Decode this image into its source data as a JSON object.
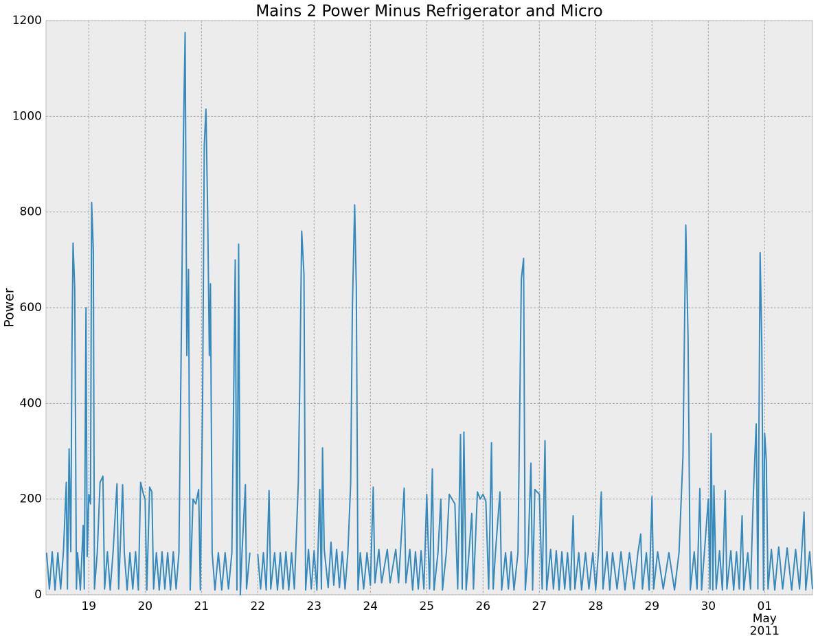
{
  "chart_data": {
    "type": "line",
    "title": "Mains 2 Power Minus Refrigerator and Micro",
    "ylabel": "Power",
    "x": [
      18.25,
      18.3,
      18.35,
      18.4,
      18.45,
      18.5,
      18.55,
      18.6,
      18.62,
      18.65,
      18.68,
      18.7,
      18.72,
      18.75,
      18.78,
      18.8,
      18.85,
      18.9,
      18.92,
      18.95,
      18.97,
      19.0,
      19.03,
      19.05,
      19.08,
      19.1,
      19.15,
      19.2,
      19.25,
      19.28,
      19.33,
      19.38,
      19.43,
      19.5,
      19.53,
      19.6,
      19.63,
      19.68,
      19.73,
      19.78,
      19.83,
      19.88,
      19.92,
      19.97,
      20.0,
      20.03,
      20.08,
      20.12,
      20.15,
      20.2,
      20.25,
      20.3,
      20.35,
      20.4,
      20.45,
      20.5,
      20.55,
      20.6,
      20.65,
      20.68,
      20.71,
      20.74,
      20.77,
      20.8,
      20.85,
      20.9,
      20.95,
      20.98,
      21.02,
      21.05,
      21.08,
      21.11,
      21.14,
      21.16,
      21.19,
      21.24,
      21.3,
      21.36,
      21.42,
      21.48,
      21.54,
      21.6,
      21.63,
      21.66,
      21.69,
      21.72,
      21.78,
      21.8,
      21.86,
      21.93,
      22.0,
      22.05,
      22.1,
      22.15,
      22.2,
      22.23,
      22.3,
      22.35,
      22.4,
      22.45,
      22.5,
      22.55,
      22.6,
      22.65,
      22.72,
      22.75,
      22.78,
      22.82,
      22.85,
      22.9,
      22.95,
      23.0,
      23.05,
      23.1,
      23.13,
      23.15,
      23.18,
      23.25,
      23.3,
      23.35,
      23.4,
      23.45,
      23.5,
      23.55,
      23.6,
      23.65,
      23.68,
      23.72,
      23.75,
      23.78,
      23.82,
      23.88,
      23.94,
      24.0,
      24.05,
      24.08,
      24.15,
      24.2,
      24.3,
      24.35,
      24.45,
      24.5,
      24.6,
      24.63,
      24.7,
      24.75,
      24.8,
      24.85,
      24.9,
      24.95,
      25.0,
      25.05,
      25.1,
      25.13,
      25.2,
      25.25,
      25.28,
      25.35,
      25.4,
      25.45,
      25.5,
      25.55,
      25.6,
      25.63,
      25.66,
      25.7,
      25.75,
      25.8,
      25.83,
      25.9,
      25.95,
      26.0,
      26.05,
      26.1,
      26.15,
      26.18,
      26.22,
      26.3,
      26.33,
      26.4,
      26.45,
      26.5,
      26.55,
      26.62,
      26.68,
      26.72,
      26.75,
      26.8,
      26.85,
      26.88,
      26.92,
      27.0,
      27.05,
      27.1,
      27.13,
      27.2,
      27.25,
      27.3,
      27.35,
      27.4,
      27.45,
      27.5,
      27.55,
      27.6,
      27.63,
      27.7,
      27.75,
      27.82,
      27.88,
      27.95,
      28.0,
      28.05,
      28.1,
      28.13,
      28.2,
      28.25,
      28.3,
      28.38,
      28.45,
      28.52,
      28.6,
      28.68,
      28.75,
      28.8,
      28.83,
      28.9,
      28.95,
      29.0,
      29.03,
      29.1,
      29.2,
      29.3,
      29.4,
      29.48,
      29.55,
      29.6,
      29.64,
      29.68,
      29.75,
      29.8,
      29.85,
      29.88,
      29.93,
      30.0,
      30.03,
      30.05,
      30.08,
      30.1,
      30.14,
      30.2,
      30.25,
      30.3,
      30.33,
      30.4,
      30.45,
      30.5,
      30.55,
      30.6,
      30.63,
      30.7,
      30.75,
      30.8,
      30.85,
      30.88,
      30.92,
      30.95,
      30.98,
      31.0,
      31.03,
      31.06,
      31.12,
      31.18,
      31.25,
      31.32,
      31.4,
      31.48,
      31.55,
      31.62,
      31.7,
      31.73,
      31.8,
      31.85
    ],
    "series": [
      {
        "color": "#348abd",
        "values": [
          88,
          12,
          90,
          10,
          88,
          12,
          92,
          235,
          12,
          305,
          90,
          510,
          735,
          640,
          12,
          88,
          10,
          145,
          12,
          600,
          80,
          210,
          190,
          820,
          720,
          12,
          88,
          235,
          248,
          12,
          90,
          10,
          88,
          232,
          12,
          230,
          88,
          10,
          88,
          12,
          90,
          10,
          235,
          210,
          200,
          10,
          225,
          215,
          12,
          88,
          10,
          90,
          12,
          88,
          10,
          90,
          12,
          88,
          620,
          960,
          1175,
          500,
          680,
          10,
          200,
          190,
          220,
          10,
          400,
          940,
          1015,
          800,
          500,
          650,
          88,
          10,
          88,
          10,
          88,
          12,
          88,
          700,
          10,
          733,
          0,
          88,
          230,
          12,
          88,
          null,
          85,
          12,
          88,
          10,
          218,
          12,
          88,
          10,
          88,
          12,
          90,
          10,
          88,
          12,
          235,
          472,
          760,
          670,
          10,
          95,
          12,
          92,
          10,
          220,
          12,
          307,
          95,
          15,
          110,
          20,
          95,
          15,
          90,
          12,
          88,
          235,
          600,
          815,
          640,
          10,
          88,
          12,
          88,
          20,
          225,
          25,
          95,
          25,
          95,
          25,
          95,
          25,
          223,
          25,
          95,
          10,
          90,
          12,
          92,
          12,
          210,
          12,
          263,
          10,
          88,
          200,
          10,
          90,
          210,
          200,
          190,
          12,
          335,
          12,
          340,
          10,
          88,
          170,
          12,
          215,
          200,
          210,
          195,
          12,
          318,
          12,
          88,
          215,
          10,
          88,
          12,
          90,
          10,
          88,
          660,
          703,
          10,
          88,
          275,
          10,
          220,
          210,
          12,
          322,
          10,
          95,
          12,
          92,
          10,
          90,
          12,
          88,
          10,
          165,
          12,
          88,
          10,
          88,
          12,
          88,
          10,
          90,
          215,
          12,
          90,
          10,
          88,
          12,
          90,
          10,
          88,
          12,
          88,
          127,
          12,
          88,
          10,
          205,
          12,
          90,
          12,
          88,
          10,
          88,
          290,
          773,
          540,
          10,
          90,
          12,
          222,
          10,
          88,
          200,
          12,
          337,
          10,
          228,
          12,
          92,
          10,
          218,
          12,
          92,
          10,
          90,
          12,
          165,
          10,
          88,
          12,
          210,
          357,
          12,
          715,
          520,
          10,
          338,
          280,
          12,
          95,
          10,
          100,
          12,
          98,
          10,
          95,
          12,
          173,
          10,
          90,
          12
        ]
      }
    ],
    "xlim": [
      18.24,
      31.85
    ],
    "xticks": [
      19,
      20,
      21,
      22,
      23,
      24,
      25,
      26,
      27,
      28,
      29,
      30,
      {
        "value": 31,
        "label": "01"
      }
    ],
    "month_label": "May",
    "year_label": "2011",
    "ylim": [
      0,
      1200
    ],
    "yticks": [
      0,
      200,
      400,
      600,
      800,
      1000,
      1200
    ],
    "grid": true,
    "background": "#ececec"
  }
}
